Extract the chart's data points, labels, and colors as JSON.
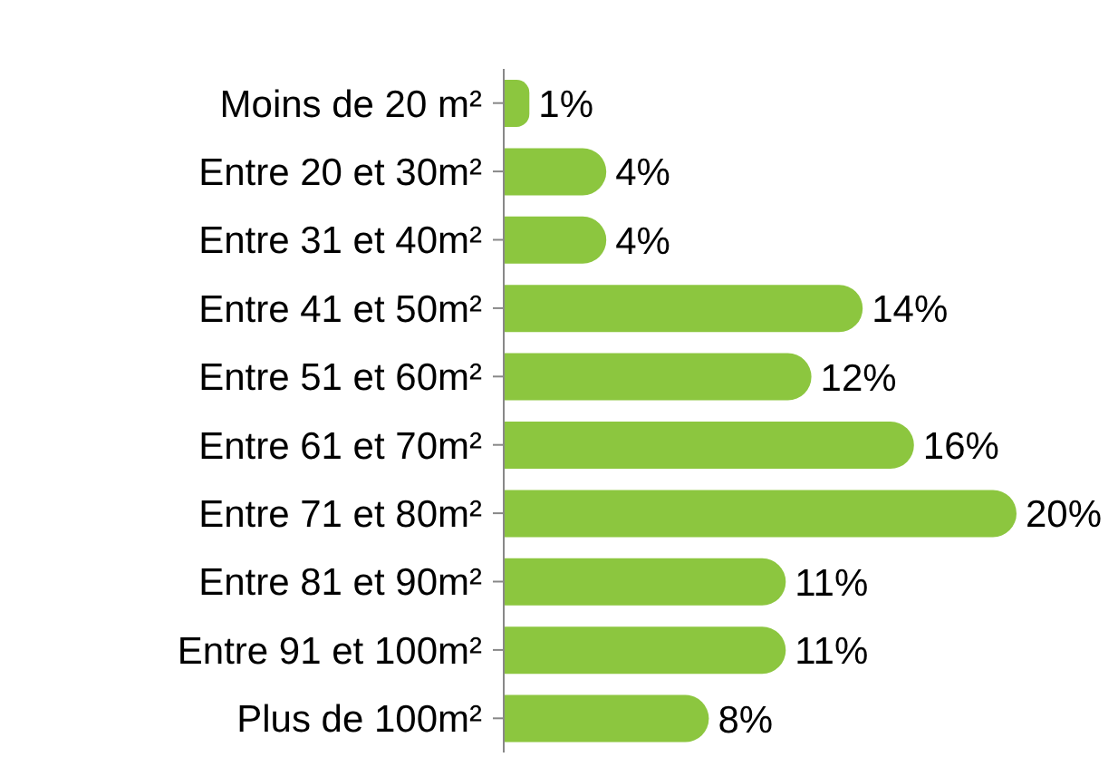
{
  "chart_data": {
    "type": "bar",
    "orientation": "horizontal",
    "categories": [
      "Moins de 20 m²",
      "Entre 20 et 30m²",
      "Entre 31 et 40m²",
      "Entre 41 et 50m²",
      "Entre 51 et 60m²",
      "Entre 61 et 70m²",
      "Entre 71 et 80m²",
      "Entre 81 et 90m²",
      "Entre 91 et 100m²",
      "Plus de 100m²"
    ],
    "values": [
      1,
      4,
      4,
      14,
      12,
      16,
      20,
      11,
      11,
      8
    ],
    "value_labels": [
      "1%",
      "4%",
      "4%",
      "14%",
      "12%",
      "16%",
      "20%",
      "11%",
      "11%",
      "8%"
    ],
    "color": "#8cc63f"
  }
}
